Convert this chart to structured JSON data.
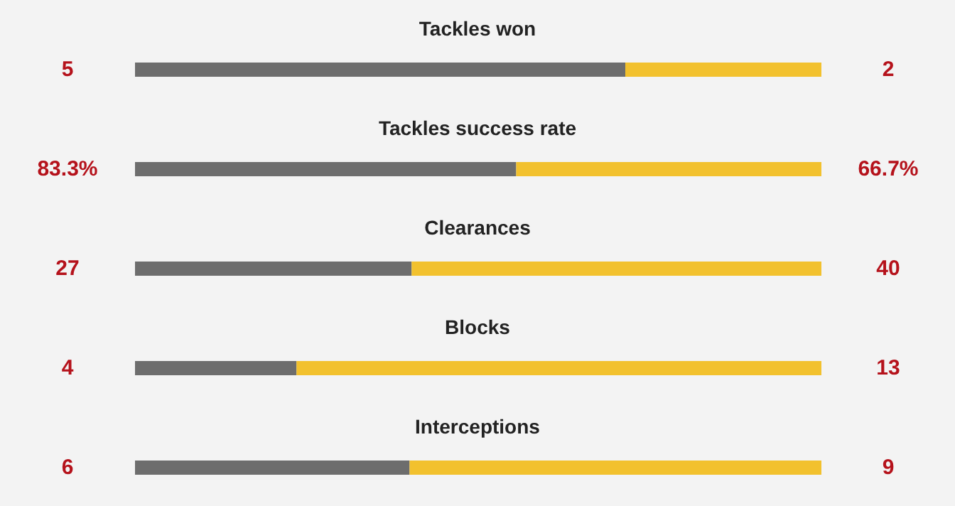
{
  "chart_data": [
    {
      "type": "bar",
      "orientation": "horizontal",
      "stacked": true,
      "tick_labels": false,
      "title": "Tackles won",
      "categories": [
        null
      ],
      "series": [
        {
          "color": "#6d6d6d",
          "values": [
            5
          ],
          "value_labels": [
            "5"
          ]
        },
        {
          "color": "#f2c12e",
          "values": [
            2
          ],
          "value_labels": [
            "2"
          ]
        }
      ]
    },
    {
      "type": "bar",
      "orientation": "horizontal",
      "stacked": true,
      "tick_labels": false,
      "title": "Tackles success rate",
      "categories": [
        null
      ],
      "series": [
        {
          "color": "#6d6d6d",
          "values": [
            83.3
          ],
          "value_labels": [
            "83.3%"
          ]
        },
        {
          "color": "#f2c12e",
          "values": [
            66.7
          ],
          "value_labels": [
            "66.7%"
          ]
        }
      ]
    },
    {
      "type": "bar",
      "orientation": "horizontal",
      "stacked": true,
      "tick_labels": false,
      "title": "Clearances",
      "categories": [
        null
      ],
      "series": [
        {
          "color": "#6d6d6d",
          "values": [
            27
          ],
          "value_labels": [
            "27"
          ]
        },
        {
          "color": "#f2c12e",
          "values": [
            40
          ],
          "value_labels": [
            "40"
          ]
        }
      ]
    },
    {
      "type": "bar",
      "orientation": "horizontal",
      "stacked": true,
      "tick_labels": false,
      "title": "Blocks",
      "categories": [
        null
      ],
      "series": [
        {
          "color": "#6d6d6d",
          "values": [
            4
          ],
          "value_labels": [
            "4"
          ]
        },
        {
          "color": "#f2c12e",
          "values": [
            13
          ],
          "value_labels": [
            "13"
          ]
        }
      ]
    },
    {
      "type": "bar",
      "orientation": "horizontal",
      "stacked": true,
      "tick_labels": false,
      "title": "Interceptions",
      "categories": [
        null
      ],
      "series": [
        {
          "color": "#6d6d6d",
          "values": [
            6
          ],
          "value_labels": [
            "6"
          ]
        },
        {
          "color": "#f2c12e",
          "values": [
            9
          ],
          "value_labels": [
            "9"
          ]
        }
      ]
    }
  ]
}
